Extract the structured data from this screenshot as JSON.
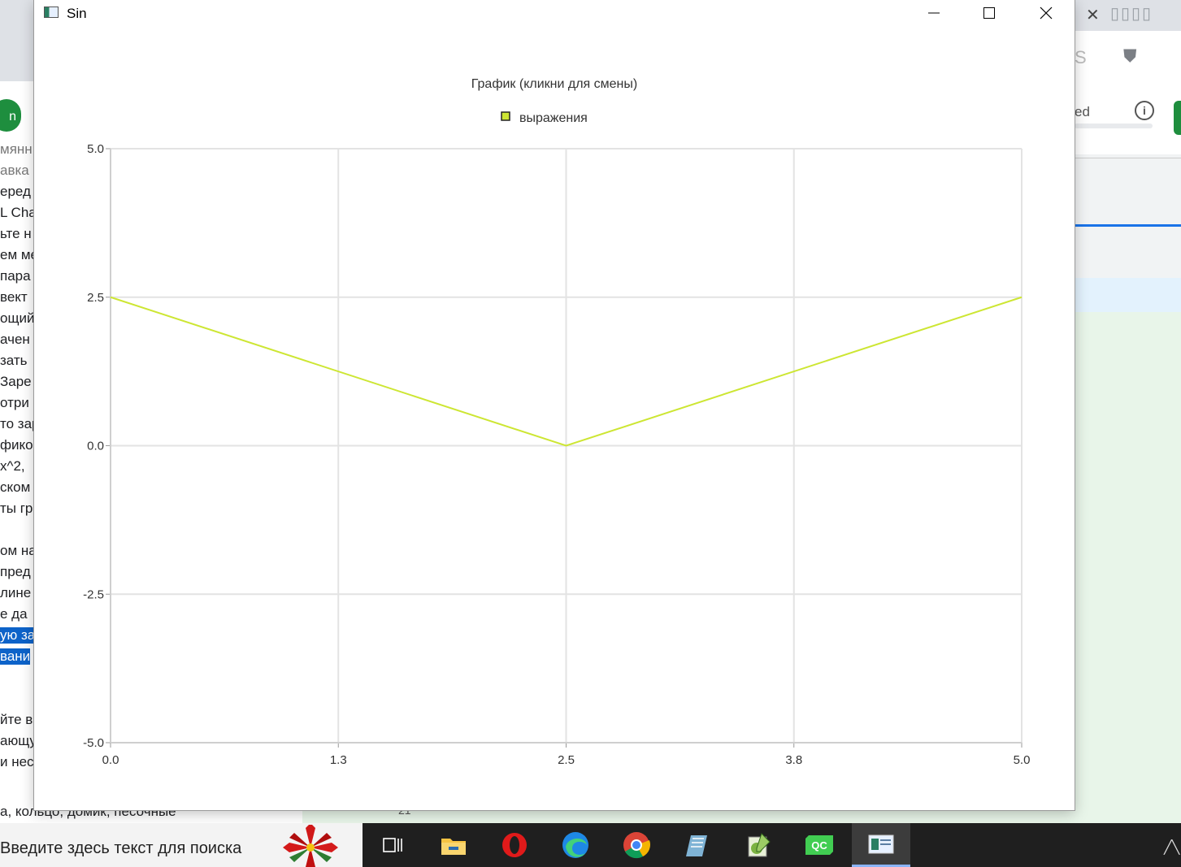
{
  "window": {
    "title": "Sin",
    "minimize_label": "Minimize",
    "maximize_label": "Maximize",
    "close_label": "Close"
  },
  "chart_data": {
    "type": "line",
    "title": "График (кликни для смены)",
    "legend": {
      "placement": "top-center",
      "entries": [
        "выражения"
      ]
    },
    "xlabel": "",
    "ylabel": "",
    "xlim": [
      0,
      5
    ],
    "ylim": [
      -5,
      5
    ],
    "x_ticks": [
      "0.0",
      "1.3",
      "2.5",
      "3.8",
      "5.0"
    ],
    "y_ticks": [
      "5.0",
      "2.5",
      "0.0",
      "-2.5",
      "-5.0"
    ],
    "grid": true,
    "series": [
      {
        "name": "выражения",
        "color": "#cde633",
        "x": [
          0,
          2.5,
          5
        ],
        "y": [
          2.5,
          0,
          2.5
        ]
      }
    ]
  },
  "background": {
    "left_lines": [
      "мянн",
      "авка",
      "еред",
      "L Cha",
      "ьте н",
      "ем ме",
      " пара",
      " вект",
      "ощий",
      "ачен",
      "зать",
      " Заре",
      " отри",
      "то зар",
      "фико",
      "x^2,",
      "ском",
      "ты гр",
      "",
      "ом на",
      "пред",
      "лине",
      "е да",
      "ую за",
      "вани",
      "",
      "",
      "йте в",
      "ающу",
      "и нес"
    ],
    "left_button": "n",
    "bottom_text": "а, кольцо, домик, песочные",
    "line_number": "21",
    "right_text": "ed",
    "info_icon": "info-icon"
  },
  "taskbar": {
    "search_placeholder": "Введите здесь текст для поиска",
    "apps": [
      "task-view-icon",
      "file-explorer-icon",
      "opera-icon",
      "edge-icon",
      "chrome-icon",
      "notepad-icon",
      "notepad-plus-icon",
      "qt-creator-icon",
      "qt-app-icon"
    ],
    "qt_label": "QC"
  }
}
